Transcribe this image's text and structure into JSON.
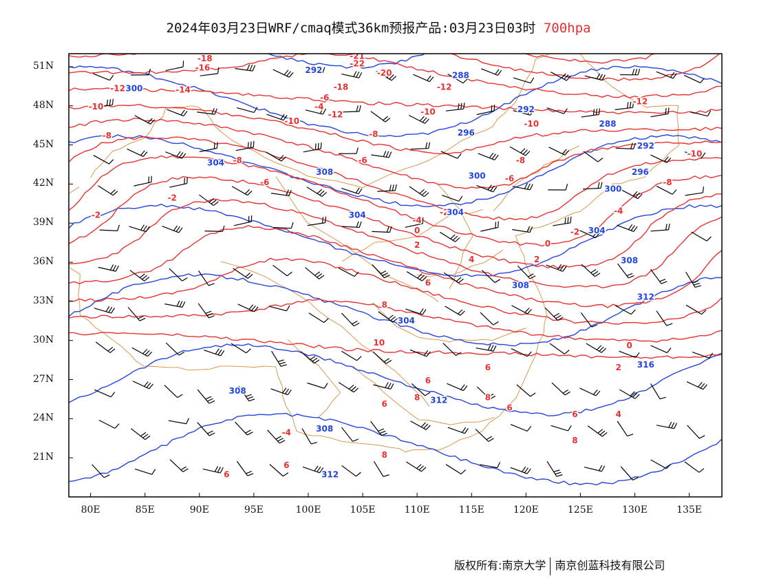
{
  "header": {
    "title": "2024年03月23日WRF/cmaq模式36km预报产品:03月23日03时",
    "level": "700hpa"
  },
  "footer": {
    "left": "版权所有:南京大学",
    "right": "南京创蓝科技有限公司"
  },
  "axes": {
    "lat_labels": [
      "51N",
      "48N",
      "45N",
      "42N",
      "39N",
      "36N",
      "33N",
      "30N",
      "27N",
      "24N",
      "21N"
    ],
    "lon_labels": [
      "80E",
      "85E",
      "90E",
      "95E",
      "100E",
      "105E",
      "110E",
      "115E",
      "120E",
      "125E",
      "130E",
      "135E"
    ]
  },
  "colors": {
    "temperature": "#e83030",
    "height": "#2244dd",
    "boundary": "#d98b3a",
    "wind": "#000000"
  },
  "chart_data": {
    "type": "map",
    "lon_range": [
      78,
      138
    ],
    "lat_range": [
      18,
      52
    ],
    "lat_ticks": [
      51,
      48,
      45,
      42,
      39,
      36,
      33,
      30,
      27,
      24,
      21
    ],
    "lon_ticks": [
      80,
      85,
      90,
      95,
      100,
      105,
      110,
      115,
      120,
      125,
      130,
      135
    ],
    "temperature_labels": [
      {
        "lon": 90.5,
        "lat": 51.6,
        "text": "-18"
      },
      {
        "lon": 90.3,
        "lat": 50.9,
        "text": "-16"
      },
      {
        "lon": 104.5,
        "lat": 51.8,
        "text": "-21"
      },
      {
        "lon": 104.5,
        "lat": 51.2,
        "text": "-22"
      },
      {
        "lon": 107,
        "lat": 50.5,
        "text": "-20"
      },
      {
        "lon": 103,
        "lat": 49.4,
        "text": "-18"
      },
      {
        "lon": 82.5,
        "lat": 49.3,
        "text": "-12"
      },
      {
        "lon": 88.5,
        "lat": 49.2,
        "text": "-14"
      },
      {
        "lon": 112.5,
        "lat": 49.4,
        "text": "-12"
      },
      {
        "lon": 80.5,
        "lat": 47.9,
        "text": "-10"
      },
      {
        "lon": 101.5,
        "lat": 48.6,
        "text": "-6"
      },
      {
        "lon": 101,
        "lat": 47.9,
        "text": "-4"
      },
      {
        "lon": 102.5,
        "lat": 47.3,
        "text": "-12"
      },
      {
        "lon": 98.5,
        "lat": 46.8,
        "text": "-10"
      },
      {
        "lon": 111,
        "lat": 47.5,
        "text": "-10"
      },
      {
        "lon": 120.5,
        "lat": 46.6,
        "text": "-10"
      },
      {
        "lon": 130.5,
        "lat": 48.3,
        "text": "-12"
      },
      {
        "lon": 81.5,
        "lat": 45.7,
        "text": "-8"
      },
      {
        "lon": 106,
        "lat": 45.8,
        "text": "-8"
      },
      {
        "lon": 93.5,
        "lat": 43.8,
        "text": "-8"
      },
      {
        "lon": 105,
        "lat": 43.8,
        "text": "-6"
      },
      {
        "lon": 119.5,
        "lat": 43.8,
        "text": "-8"
      },
      {
        "lon": 135.5,
        "lat": 44.3,
        "text": "-10"
      },
      {
        "lon": 96,
        "lat": 42.1,
        "text": "-6"
      },
      {
        "lon": 87.5,
        "lat": 40.9,
        "text": "-2"
      },
      {
        "lon": 118.5,
        "lat": 42.4,
        "text": "-6"
      },
      {
        "lon": 133,
        "lat": 42.1,
        "text": "-8"
      },
      {
        "lon": 80.5,
        "lat": 39.6,
        "text": "-2"
      },
      {
        "lon": 112.5,
        "lat": 39.8,
        "text": "-2"
      },
      {
        "lon": 110,
        "lat": 39.2,
        "text": "-4"
      },
      {
        "lon": 128.5,
        "lat": 39.9,
        "text": "-4"
      },
      {
        "lon": 124.5,
        "lat": 38.3,
        "text": "-2"
      },
      {
        "lon": 110,
        "lat": 38.4,
        "text": "0"
      },
      {
        "lon": 110,
        "lat": 37.3,
        "text": "2"
      },
      {
        "lon": 122,
        "lat": 37.4,
        "text": "0"
      },
      {
        "lon": 115,
        "lat": 36.2,
        "text": "4"
      },
      {
        "lon": 121,
        "lat": 36.2,
        "text": "2"
      },
      {
        "lon": 111,
        "lat": 34.4,
        "text": "6"
      },
      {
        "lon": 107,
        "lat": 32.7,
        "text": "8"
      },
      {
        "lon": 106.5,
        "lat": 29.8,
        "text": "10"
      },
      {
        "lon": 129.5,
        "lat": 29.6,
        "text": "0"
      },
      {
        "lon": 128.5,
        "lat": 27.9,
        "text": "2"
      },
      {
        "lon": 111,
        "lat": 26.9,
        "text": "6"
      },
      {
        "lon": 116.5,
        "lat": 27.9,
        "text": "6"
      },
      {
        "lon": 110,
        "lat": 25.6,
        "text": "8"
      },
      {
        "lon": 116.5,
        "lat": 25.6,
        "text": "8"
      },
      {
        "lon": 107,
        "lat": 25.1,
        "text": "6"
      },
      {
        "lon": 118.5,
        "lat": 24.8,
        "text": "6"
      },
      {
        "lon": 124.5,
        "lat": 24.3,
        "text": "6"
      },
      {
        "lon": 128.5,
        "lat": 24.3,
        "text": "4"
      },
      {
        "lon": 98,
        "lat": 22.9,
        "text": "-4"
      },
      {
        "lon": 107,
        "lat": 21.2,
        "text": "8"
      },
      {
        "lon": 124.5,
        "lat": 22.3,
        "text": "8"
      },
      {
        "lon": 98,
        "lat": 20.4,
        "text": "6"
      },
      {
        "lon": 92.5,
        "lat": 19.7,
        "text": "6"
      }
    ],
    "height_labels": [
      {
        "lon": 100.5,
        "lat": 50.7,
        "text": "292"
      },
      {
        "lon": 114,
        "lat": 50.3,
        "text": "288"
      },
      {
        "lon": 84,
        "lat": 49.3,
        "text": "300"
      },
      {
        "lon": 120,
        "lat": 47.7,
        "text": "292"
      },
      {
        "lon": 127.5,
        "lat": 46.6,
        "text": "288"
      },
      {
        "lon": 114.5,
        "lat": 45.9,
        "text": "296"
      },
      {
        "lon": 131,
        "lat": 44.9,
        "text": "292"
      },
      {
        "lon": 91.5,
        "lat": 43.6,
        "text": "304"
      },
      {
        "lon": 101.5,
        "lat": 42.9,
        "text": "308"
      },
      {
        "lon": 115.5,
        "lat": 42.6,
        "text": "300"
      },
      {
        "lon": 130.5,
        "lat": 42.9,
        "text": "296"
      },
      {
        "lon": 128,
        "lat": 41.6,
        "text": "300"
      },
      {
        "lon": 104.5,
        "lat": 39.6,
        "text": "304"
      },
      {
        "lon": 113.5,
        "lat": 39.8,
        "text": "304"
      },
      {
        "lon": 126.5,
        "lat": 38.4,
        "text": "304"
      },
      {
        "lon": 129.5,
        "lat": 36.1,
        "text": "308"
      },
      {
        "lon": 119.5,
        "lat": 34.2,
        "text": "308"
      },
      {
        "lon": 131,
        "lat": 33.3,
        "text": "312"
      },
      {
        "lon": 109,
        "lat": 31.5,
        "text": "304"
      },
      {
        "lon": 131,
        "lat": 28.1,
        "text": "316"
      },
      {
        "lon": 93.5,
        "lat": 26.1,
        "text": "308"
      },
      {
        "lon": 112,
        "lat": 25.4,
        "text": "312"
      },
      {
        "lon": 101.5,
        "lat": 23.2,
        "text": "308"
      },
      {
        "lon": 102,
        "lat": 19.7,
        "text": "312"
      }
    ]
  }
}
